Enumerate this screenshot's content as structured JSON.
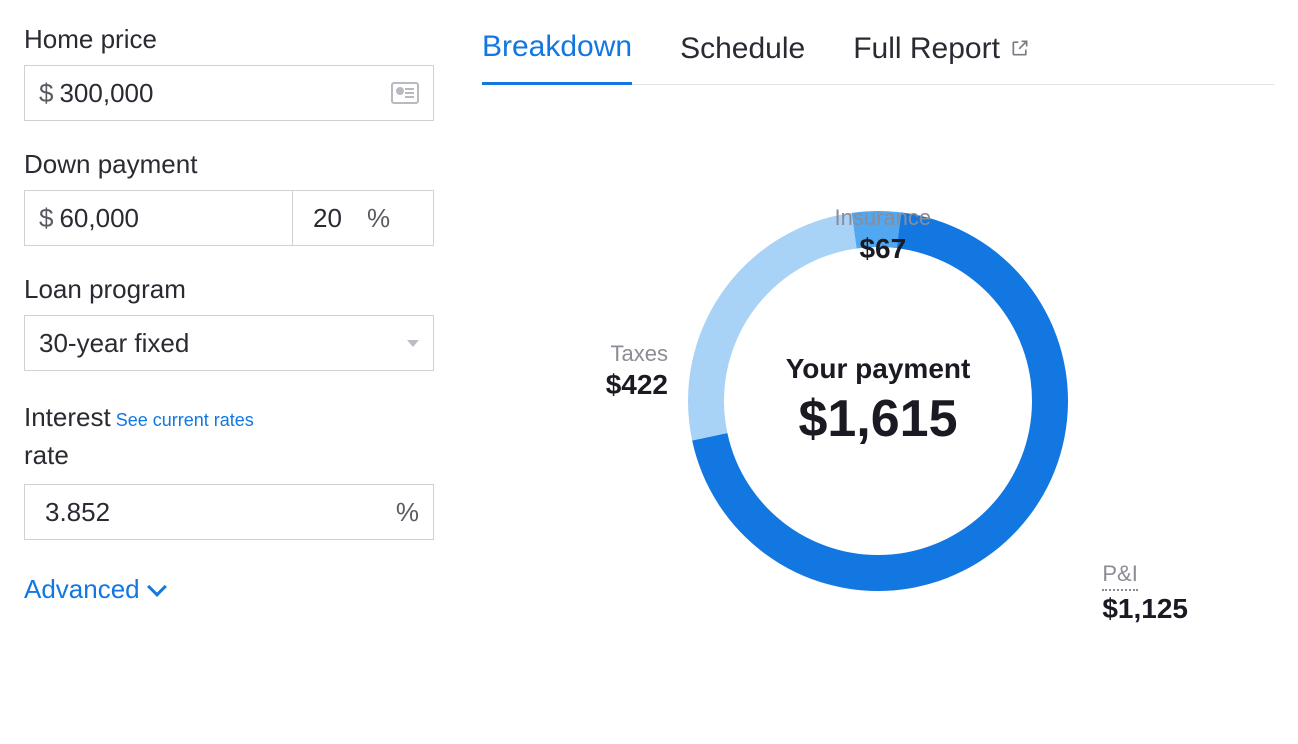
{
  "form": {
    "home_price": {
      "label": "Home price",
      "prefix": "$",
      "value": "300,000"
    },
    "down_payment": {
      "label": "Down payment",
      "prefix": "$",
      "value": "60,000",
      "pct_value": "20",
      "pct_suffix": "%"
    },
    "loan_program": {
      "label": "Loan program",
      "value": "30-year fixed"
    },
    "interest": {
      "label_part1": "Interest",
      "link_text": "See current rates",
      "label_part2": "rate",
      "value": "3.852",
      "suffix": "%"
    },
    "advanced_label": "Advanced"
  },
  "tabs": {
    "breakdown": "Breakdown",
    "schedule": "Schedule",
    "full_report": "Full Report"
  },
  "chart": {
    "type": "donut",
    "center_title": "Your payment",
    "center_value": "$1,615",
    "total": 1614,
    "ring_thickness": 36,
    "outer_radius": 190,
    "background_color": "#ffffff",
    "segments": [
      {
        "key": "insurance",
        "label": "Insurance",
        "display": "$67",
        "value": 67,
        "color": "#52a8f0",
        "start_deg": -8,
        "end_deg": 7
      },
      {
        "key": "pi",
        "label": "P&I",
        "display": "$1,125",
        "value": 1125,
        "color": "#1277e1",
        "start_deg": 7,
        "end_deg": 258
      },
      {
        "key": "taxes",
        "label": "Taxes",
        "display": "$422",
        "value": 422,
        "color": "#a9d2f7",
        "start_deg": 258,
        "end_deg": 352
      }
    ]
  }
}
